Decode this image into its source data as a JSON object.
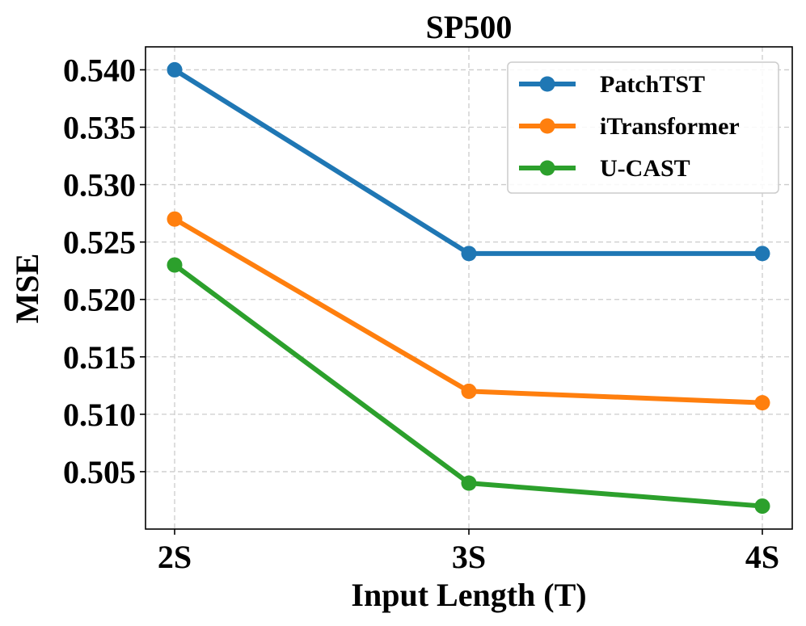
{
  "chart_data": {
    "type": "line",
    "title": "SP500",
    "xlabel": "Input Length (T)",
    "ylabel": "MSE",
    "categories": [
      "2S",
      "3S",
      "4S"
    ],
    "ylim": [
      0.5,
      0.542
    ],
    "yticks": [
      "0.505",
      "0.510",
      "0.515",
      "0.520",
      "0.525",
      "0.530",
      "0.535",
      "0.540"
    ],
    "ytick_values": [
      0.505,
      0.51,
      0.515,
      0.52,
      0.525,
      0.53,
      0.535,
      0.54
    ],
    "grid": true,
    "legend_position": "top-right",
    "series": [
      {
        "name": "PatchTST",
        "color": "#1f77b4",
        "values": [
          0.54,
          0.524,
          0.524
        ]
      },
      {
        "name": "iTransformer",
        "color": "#ff7f0e",
        "values": [
          0.527,
          0.512,
          0.511
        ]
      },
      {
        "name": "U-CAST",
        "color": "#2ca02c",
        "values": [
          0.523,
          0.504,
          0.502
        ]
      }
    ]
  }
}
